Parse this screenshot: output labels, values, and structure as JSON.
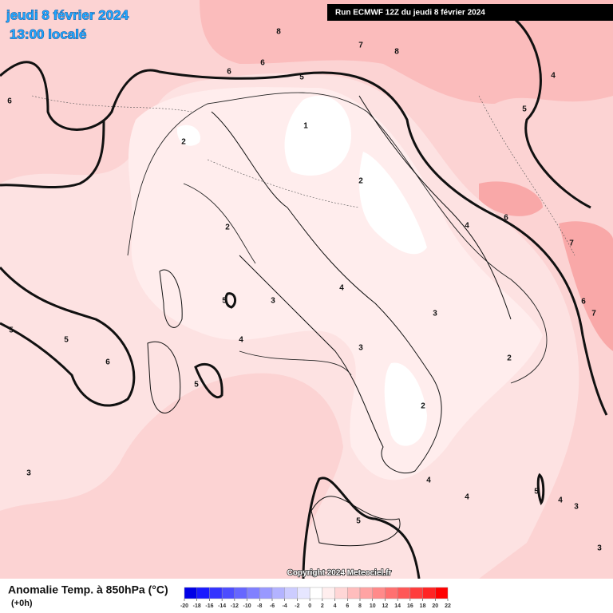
{
  "header": {
    "title": "jeudi 8 février 2024",
    "subtitle": "13:00 localé",
    "run": "Run ECMWF 12Z du jeudi 8 février 2024"
  },
  "map": {
    "contour_labels": [
      8,
      7,
      8,
      6,
      6,
      5,
      4,
      6,
      5,
      1,
      2,
      2,
      6,
      4,
      2,
      7,
      4,
      5,
      3,
      6,
      3,
      7,
      5,
      5,
      4,
      3,
      6,
      2,
      5,
      2,
      3,
      4,
      5,
      4,
      4,
      3,
      5,
      3
    ],
    "copyright": "Copyright 2024 Meteociel.fr"
  },
  "legend": {
    "title": "Anomalie Temp. à 850hPa (°C)",
    "subtitle": "(+0h)",
    "ticks": [
      -20,
      -18,
      -16,
      -14,
      -12,
      -10,
      -8,
      -6,
      -4,
      -2,
      0,
      2,
      4,
      6,
      8,
      10,
      12,
      14,
      16,
      18,
      20,
      22
    ],
    "colors": [
      "#0000e6",
      "#1a1aff",
      "#3333ff",
      "#4d4dff",
      "#6666ff",
      "#8080ff",
      "#9999ff",
      "#b3b3ff",
      "#ccccff",
      "#e6e6ff",
      "#ffffff",
      "#ffeeee",
      "#ffd6d6",
      "#ffbdbd",
      "#ffa3a3",
      "#ff8a8a",
      "#ff7070",
      "#ff5757",
      "#ff3d3d",
      "#ff2424",
      "#ff0000"
    ]
  }
}
